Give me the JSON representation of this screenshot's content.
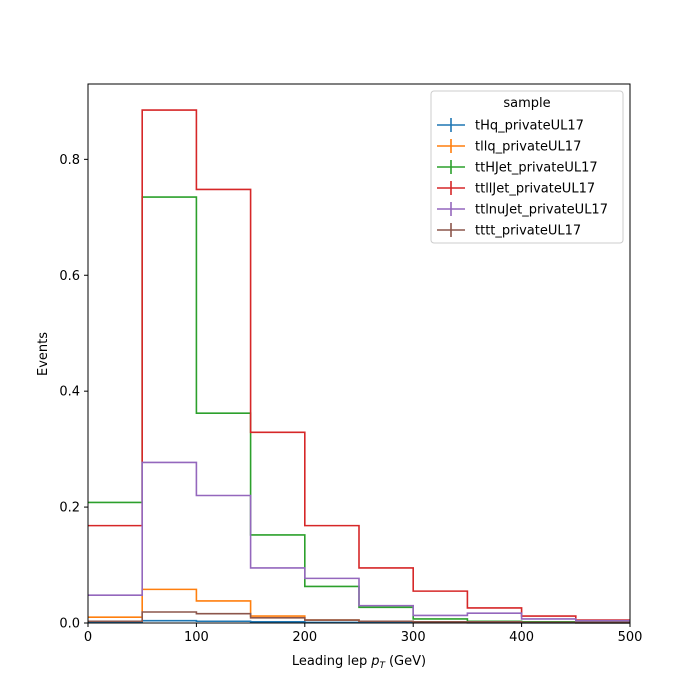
{
  "chart_data": {
    "type": "line",
    "style": "step-histogram",
    "xlabel": "Leading lep",
    "xlabel_math": "p",
    "xlabel_sub": "T",
    "xlabel_unit": "(GeV)",
    "ylabel": "Events",
    "xlim": [
      0,
      500
    ],
    "ylim": [
      0,
      0.93
    ],
    "xticks": [
      "0",
      "100",
      "200",
      "300",
      "400",
      "500"
    ],
    "yticks": [
      "0.0",
      "0.2",
      "0.4",
      "0.6",
      "0.8"
    ],
    "grid": false,
    "legend_title": "sample",
    "legend_position": "top-right",
    "bin_edges": [
      0,
      50,
      100,
      150,
      200,
      250,
      300,
      350,
      400,
      450,
      500
    ],
    "series": [
      {
        "name": "tHq_privateUL17",
        "color": "#1f77b4",
        "values": [
          0.002,
          0.004,
          0.003,
          0.002,
          0.001,
          0.001,
          0.0005,
          0.0003,
          0.0002,
          0.0001
        ]
      },
      {
        "name": "tllq_privateUL17",
        "color": "#ff7f0e",
        "values": [
          0.01,
          0.058,
          0.038,
          0.012,
          0.005,
          0.003,
          0.002,
          0.001,
          0.0005,
          0.0003
        ]
      },
      {
        "name": "ttHJet_privateUL17",
        "color": "#2ca02c",
        "values": [
          0.208,
          0.735,
          0.362,
          0.152,
          0.063,
          0.027,
          0.007,
          0.003,
          0.002,
          0.001
        ]
      },
      {
        "name": "ttllJet_privateUL17",
        "color": "#d62728",
        "values": [
          0.168,
          0.885,
          0.748,
          0.329,
          0.168,
          0.095,
          0.055,
          0.026,
          0.012,
          0.005
        ]
      },
      {
        "name": "ttlnuJet_privateUL17",
        "color": "#9467bd",
        "values": [
          0.048,
          0.277,
          0.22,
          0.095,
          0.077,
          0.03,
          0.013,
          0.017,
          0.007,
          0.004
        ]
      },
      {
        "name": "tttt_privateUL17",
        "color": "#8c564b",
        "values": [
          0.003,
          0.019,
          0.016,
          0.009,
          0.005,
          0.003,
          0.002,
          0.002,
          0.001,
          0.001
        ]
      }
    ]
  }
}
